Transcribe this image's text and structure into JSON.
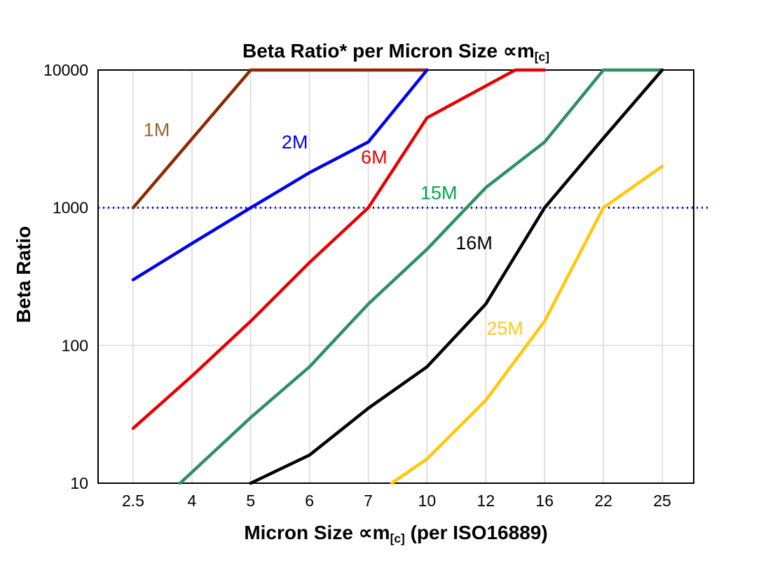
{
  "chart_data": {
    "type": "line",
    "title_main": "Beta Ratio* per Micron Size ∝m",
    "title_sub": "[c]",
    "ylabel": "Beta Ratio",
    "xlabel_pre": "Micron Size ∝m",
    "xlabel_sub": "[c]",
    "xlabel_post": " (per ISO16889)",
    "x_categories": [
      2.5,
      4,
      5,
      6,
      7,
      10,
      12,
      16,
      22,
      25
    ],
    "y_scale": "log",
    "y_ticks": [
      10,
      100,
      1000,
      10000
    ],
    "ylim": [
      10,
      10000
    ],
    "grid": true,
    "grid_color": "#d8d8d8",
    "border_color": "#000000",
    "reference_line": {
      "y": 1000,
      "color": "#0000dd",
      "style": "dotted"
    },
    "series": [
      {
        "name": "1M",
        "color": "#8A2B02",
        "label_color": "#9A6430",
        "label_at": {
          "x": 3.1,
          "y": 3300
        },
        "points": [
          [
            2.5,
            1000
          ],
          [
            5,
            10000
          ],
          [
            10,
            10000
          ]
        ]
      },
      {
        "name": "2M",
        "color": "#0000EE",
        "label_color": "#0000EE",
        "label_at": {
          "x": 5.75,
          "y": 2700
        },
        "points": [
          [
            2.5,
            300
          ],
          [
            4,
            550
          ],
          [
            5,
            1000
          ],
          [
            6,
            1800
          ],
          [
            7,
            3000
          ],
          [
            10,
            10000
          ]
        ]
      },
      {
        "name": "6M",
        "color": "#E80000",
        "label_color": "#E80000",
        "label_at": {
          "x": 7.3,
          "y": 2100
        },
        "points": [
          [
            2.5,
            25
          ],
          [
            4,
            60
          ],
          [
            5,
            150
          ],
          [
            6,
            400
          ],
          [
            7,
            1000
          ],
          [
            10,
            4500
          ],
          [
            14,
            10000
          ],
          [
            16,
            10000
          ]
        ]
      },
      {
        "name": "15M",
        "color": "#2F8F63",
        "label_color": "#00A550",
        "label_at": {
          "x": 10.4,
          "y": 1150
        },
        "points": [
          [
            3.7,
            10
          ],
          [
            5,
            30
          ],
          [
            6,
            70
          ],
          [
            7,
            200
          ],
          [
            10,
            500
          ],
          [
            12,
            1400
          ],
          [
            16,
            3000
          ],
          [
            22,
            10000
          ],
          [
            25,
            10000
          ]
        ]
      },
      {
        "name": "16M",
        "color": "#000000",
        "label_color": "#000000",
        "label_at": {
          "x": 11.6,
          "y": 500
        },
        "points": [
          [
            5,
            10
          ],
          [
            6,
            16
          ],
          [
            7,
            35
          ],
          [
            10,
            70
          ],
          [
            12,
            200
          ],
          [
            16,
            1000
          ],
          [
            22,
            3200
          ],
          [
            25,
            10000
          ]
        ]
      },
      {
        "name": "25M",
        "color": "#FFC80A",
        "label_color": "#FFC81E",
        "label_at": {
          "x": 13.3,
          "y": 120
        },
        "points": [
          [
            8.2,
            10
          ],
          [
            10,
            15
          ],
          [
            12,
            40
          ],
          [
            16,
            150
          ],
          [
            22,
            1000
          ],
          [
            25,
            2000
          ]
        ]
      }
    ]
  }
}
